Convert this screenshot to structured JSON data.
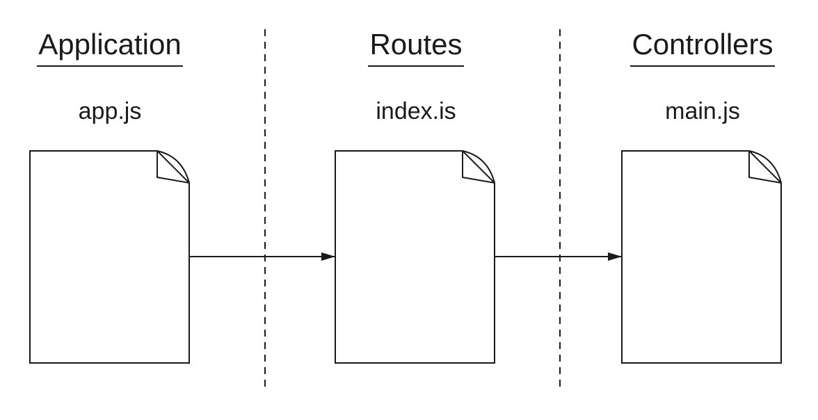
{
  "columns": [
    {
      "heading": "Application",
      "file": "app.js"
    },
    {
      "heading": "Routes",
      "file": "index.is"
    },
    {
      "heading": "Controllers",
      "file": "main.js"
    }
  ],
  "colors": {
    "line": "#1a1a1a",
    "background": "#ffffff"
  }
}
